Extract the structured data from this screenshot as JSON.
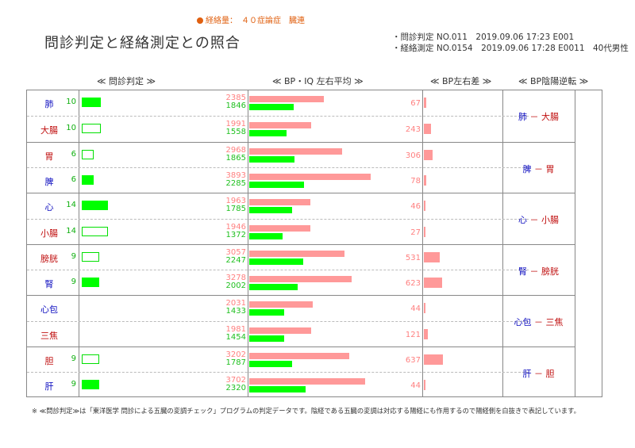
{
  "top_note": "経絡量：　４０症論症　臓連",
  "title": "問診判定と経絡測定との照合",
  "meta": [
    "・問診判定 NO.011　2019.09.06 17:23 E001",
    "・経絡測定 NO.0154　2019.09.06 17:28 E0011　40代男性"
  ],
  "headers": {
    "col1": "≪ 問診判定 ≫",
    "col2": "≪ BP・IQ 左右平均 ≫",
    "col3": "≪ BP左右差 ≫",
    "col4": "≪ BP陰陽逆転 ≫"
  },
  "colors": {
    "yin_label": "#1010c0",
    "yang_label": "#c01010",
    "score_bar": "#00ff00",
    "bp_bar": "#ff9999",
    "iq_bar": "#00ff00"
  },
  "chart_data": {
    "type": "bar",
    "organs": [
      "肺",
      "大腸",
      "胃",
      "脾",
      "心",
      "小腸",
      "膀胱",
      "腎",
      "心包",
      "三焦",
      "胆",
      "肝"
    ],
    "organ_is_yin": [
      true,
      false,
      false,
      true,
      true,
      false,
      false,
      true,
      true,
      false,
      false,
      true
    ],
    "score_labels": [
      "10",
      "10",
      "6",
      "6",
      "14",
      "14",
      "9",
      "9",
      "",
      "",
      "9",
      "9"
    ],
    "scores": [
      10,
      10,
      6,
      6,
      14,
      14,
      9,
      9,
      null,
      null,
      9,
      9
    ],
    "score_bar_style": [
      "fill",
      "outline",
      "outline",
      "fill",
      "fill",
      "outline",
      "outline",
      "fill",
      "none",
      "none",
      "outline",
      "fill"
    ],
    "bp_avg": [
      2385,
      1991,
      2968,
      3893,
      1963,
      1946,
      3057,
      3278,
      2031,
      1981,
      3202,
      3702
    ],
    "iq_avg": [
      1846,
      1558,
      1865,
      2285,
      1785,
      1372,
      2247,
      2002,
      1433,
      1454,
      1787,
      2320
    ],
    "bp_diff": [
      67,
      243,
      306,
      78,
      46,
      27,
      531,
      623,
      44,
      121,
      637,
      44
    ],
    "pairs": [
      {
        "yin": "肺",
        "sep": " － ",
        "yang": "大腸"
      },
      {
        "yin": "脾",
        "sep": " － ",
        "yang": "胃"
      },
      {
        "yin": "心",
        "sep": " － ",
        "yang": "小腸"
      },
      {
        "yin": "腎",
        "sep": " － ",
        "yang": "膀胱"
      },
      {
        "yin": "心包",
        "sep": " － ",
        "yang": "三焦"
      },
      {
        "yin": "肝",
        "sep": " － ",
        "yang": "胆"
      }
    ]
  },
  "footnote": "※ ≪問診判定≫は「東洋医学 問診による五臓の変調チェック」プログラムの判定データです。陰経である五臓の変調は対応する陽経にも作用するので陽経側を白抜きで表記しています。"
}
